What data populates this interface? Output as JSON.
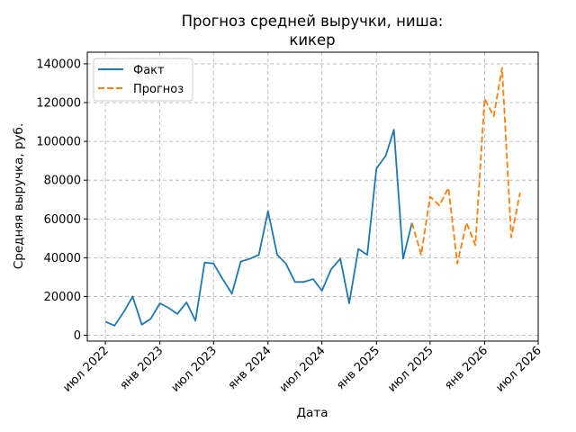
{
  "chart_data": {
    "type": "line",
    "title_line1": "Прогноз средней выручки, ниша:",
    "title_line2": "кикер",
    "xlabel": "Дата",
    "ylabel": "Средняя выручка, руб.",
    "x_range": [
      "2022-05-01",
      "2026-07-01"
    ],
    "ylim": [
      -3000,
      146000
    ],
    "y_ticks": [
      0,
      20000,
      40000,
      60000,
      80000,
      100000,
      120000,
      140000
    ],
    "y_tick_labels": [
      "0",
      "20000",
      "40000",
      "60000",
      "80000",
      "100000",
      "120000",
      "140000"
    ],
    "x_ticks": [
      {
        "date": "2022-07-01",
        "label": "июл 2022"
      },
      {
        "date": "2023-01-01",
        "label": "янв 2023"
      },
      {
        "date": "2023-07-01",
        "label": "июл 2023"
      },
      {
        "date": "2024-01-01",
        "label": "янв 2024"
      },
      {
        "date": "2024-07-01",
        "label": "июл 2024"
      },
      {
        "date": "2025-01-01",
        "label": "янв 2025"
      },
      {
        "date": "2025-07-01",
        "label": "июл 2025"
      },
      {
        "date": "2026-01-01",
        "label": "янв 2026"
      },
      {
        "date": "2026-07-01",
        "label": "июл 2026"
      }
    ],
    "grid": true,
    "legend_position": "top-left",
    "series": [
      {
        "name": "Факт",
        "color": "#1f77b4",
        "style": "solid",
        "x": [
          "2022-07-01",
          "2022-08-01",
          "2022-09-01",
          "2022-10-01",
          "2022-11-01",
          "2022-12-01",
          "2023-01-01",
          "2023-02-01",
          "2023-03-01",
          "2023-04-01",
          "2023-05-01",
          "2023-06-01",
          "2023-07-01",
          "2023-08-01",
          "2023-09-01",
          "2023-10-01",
          "2023-11-01",
          "2023-12-01",
          "2024-01-01",
          "2024-02-01",
          "2024-03-01",
          "2024-04-01",
          "2024-05-01",
          "2024-06-01",
          "2024-07-01",
          "2024-08-01",
          "2024-09-01",
          "2024-10-01",
          "2024-11-01",
          "2024-12-01",
          "2025-01-01",
          "2025-02-01",
          "2025-03-01",
          "2025-04-01",
          "2025-05-01"
        ],
        "values": [
          7000,
          5000,
          12000,
          20000,
          5500,
          8500,
          16500,
          14000,
          11000,
          17000,
          7500,
          37500,
          37000,
          29000,
          21500,
          38000,
          39500,
          41500,
          64000,
          41500,
          37000,
          27500,
          27500,
          29000,
          23000,
          34000,
          39500,
          16500,
          44500,
          41500,
          86000,
          92500,
          106000,
          39500,
          58000
        ]
      },
      {
        "name": "Прогноз",
        "color": "#ff7f0e",
        "style": "dashed",
        "x": [
          "2025-05-01",
          "2025-06-01",
          "2025-07-01",
          "2025-08-01",
          "2025-09-01",
          "2025-10-01",
          "2025-11-01",
          "2025-12-01",
          "2026-01-01",
          "2026-02-01",
          "2026-03-01",
          "2026-04-01",
          "2026-05-01"
        ],
        "values": [
          58000,
          41500,
          71500,
          67000,
          76000,
          37000,
          58000,
          46500,
          122000,
          113000,
          138000,
          50500,
          73500
        ]
      }
    ]
  }
}
